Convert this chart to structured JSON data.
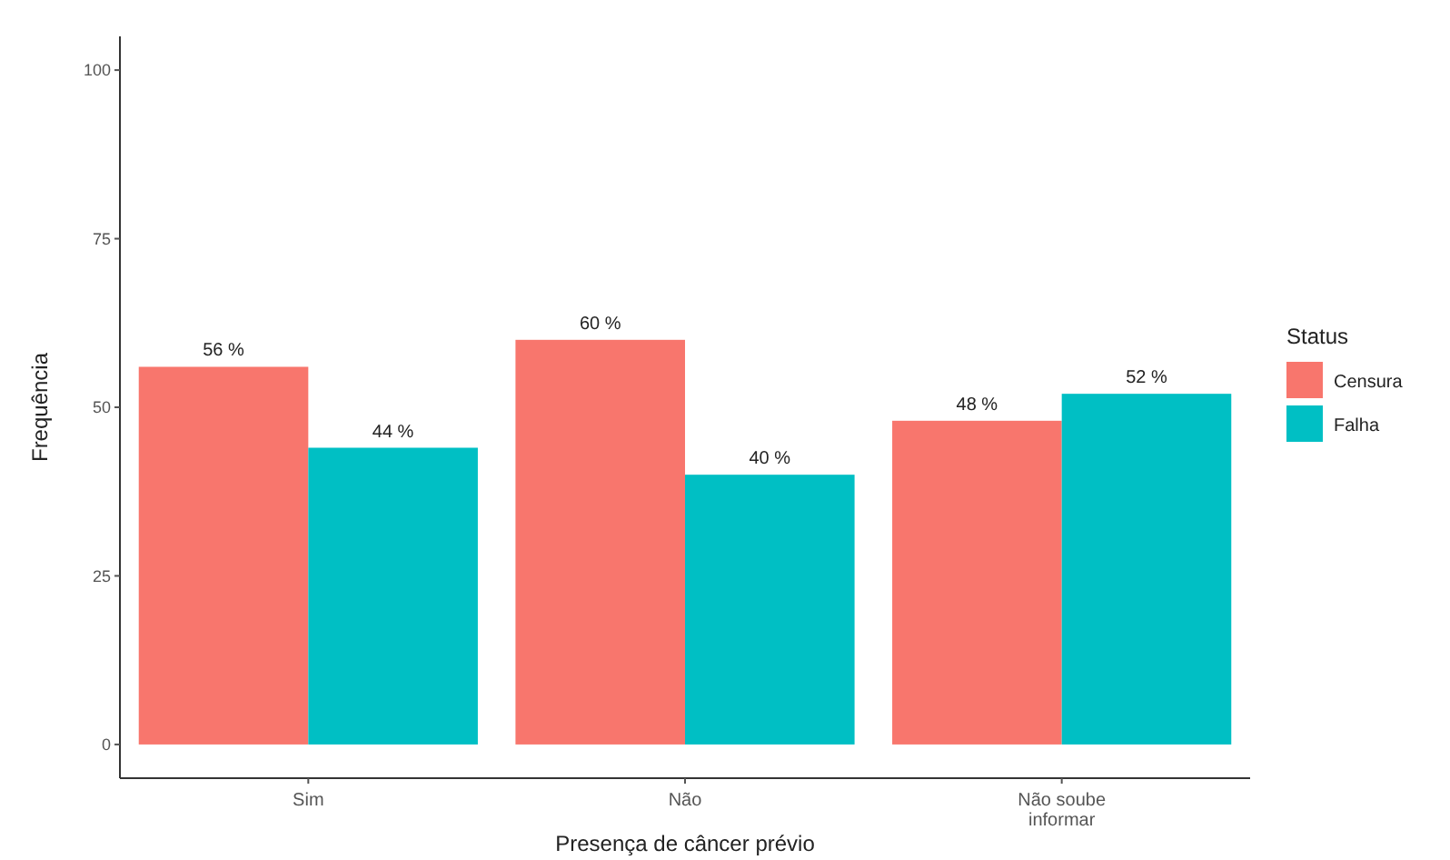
{
  "chart_data": {
    "type": "bar",
    "xlabel": "Presença de câncer prévio",
    "ylabel": "Frequência",
    "legend_title": "Status",
    "categories": [
      "Sim",
      "Não",
      "Não soube informar"
    ],
    "series": [
      {
        "name": "Censura",
        "color": "#f8766d",
        "values": [
          56,
          60,
          48
        ],
        "value_labels": [
          "56 %",
          "60 %",
          "48 %"
        ]
      },
      {
        "name": "Falha",
        "color": "#00bfc4",
        "values": [
          44,
          40,
          52
        ],
        "value_labels": [
          "44 %",
          "40 %",
          "52 %"
        ]
      }
    ],
    "ylim": [
      -5,
      105
    ],
    "yticks": [
      0,
      25,
      50,
      75,
      100
    ],
    "grid": false,
    "legend": "right"
  }
}
